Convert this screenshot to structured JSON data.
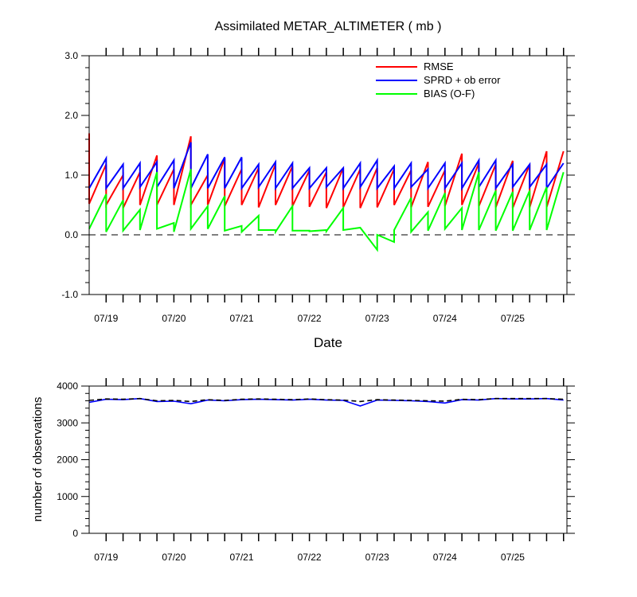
{
  "chart_data": [
    {
      "type": "line",
      "title": "Assimilated METAR_ALTIMETER ( mb )",
      "xlabel": "Date",
      "ylabel": "",
      "ylim": [
        -1.0,
        3.0
      ],
      "yticks": [
        "-1.0",
        "0.0",
        "1.0",
        "2.0",
        "3.0"
      ],
      "xlim": [
        0.0,
        7.05
      ],
      "xticks": [
        {
          "x": 0.25,
          "label": "07/19"
        },
        {
          "x": 1.25,
          "label": "07/20"
        },
        {
          "x": 2.25,
          "label": "07/21"
        },
        {
          "x": 3.25,
          "label": "07/22"
        },
        {
          "x": 4.25,
          "label": "07/23"
        },
        {
          "x": 4.75,
          "label": ""
        },
        {
          "x": 5.25,
          "label": "07/24"
        },
        {
          "x": 6.25,
          "label": "07/25"
        }
      ],
      "zero_line": true,
      "legend_position": "top-right",
      "series": [
        {
          "name": "RMSE",
          "color": "#ff0000",
          "x": [
            0.0,
            0.0,
            0.25,
            0.25,
            0.5,
            0.5,
            0.75,
            0.75,
            1.0,
            1.0,
            1.25,
            1.25,
            1.5,
            1.5,
            1.75,
            1.75,
            2.0,
            2.0,
            2.25,
            2.25,
            2.5,
            2.5,
            2.75,
            2.75,
            3.0,
            3.0,
            3.25,
            3.25,
            3.5,
            3.5,
            3.75,
            3.75,
            4.0,
            4.0,
            4.25,
            4.25,
            4.5,
            4.5,
            4.75,
            4.75,
            5.0,
            5.0,
            5.25,
            5.25,
            5.5,
            5.5,
            5.75,
            5.75,
            6.0,
            6.0,
            6.25,
            6.25,
            6.5,
            6.5,
            6.75,
            6.75,
            7.0
          ],
          "y": [
            1.7,
            0.52,
            1.18,
            0.5,
            1.0,
            0.45,
            1.05,
            0.5,
            1.33,
            0.5,
            1.1,
            0.5,
            1.65,
            0.5,
            1.0,
            0.5,
            1.28,
            0.48,
            1.1,
            0.5,
            1.12,
            0.46,
            1.18,
            0.5,
            1.15,
            0.48,
            1.08,
            0.47,
            1.05,
            0.45,
            1.12,
            0.46,
            1.1,
            0.45,
            1.12,
            0.46,
            1.1,
            0.5,
            1.08,
            0.46,
            1.22,
            0.47,
            1.08,
            0.48,
            1.36,
            0.5,
            1.2,
            0.48,
            1.18,
            0.46,
            1.24,
            0.45,
            1.18,
            0.46,
            1.4,
            0.46,
            1.4
          ]
        },
        {
          "name": "SPRD + ob error",
          "color": "#0000ff",
          "x": [
            0.0,
            0.25,
            0.25,
            0.5,
            0.5,
            0.75,
            0.75,
            1.0,
            1.0,
            1.25,
            1.25,
            1.5,
            1.5,
            1.75,
            1.75,
            2.0,
            2.0,
            2.25,
            2.25,
            2.5,
            2.5,
            2.75,
            2.75,
            3.0,
            3.0,
            3.25,
            3.25,
            3.5,
            3.5,
            3.75,
            3.75,
            4.0,
            4.0,
            4.25,
            4.25,
            4.5,
            4.5,
            4.75,
            4.75,
            5.0,
            5.0,
            5.25,
            5.25,
            5.5,
            5.5,
            5.75,
            5.75,
            6.0,
            6.0,
            6.25,
            6.25,
            6.5,
            6.5,
            6.75,
            6.75,
            7.0,
            7.0
          ],
          "y": [
            0.78,
            1.28,
            0.78,
            1.18,
            0.78,
            1.2,
            0.8,
            1.22,
            0.8,
            1.25,
            0.78,
            1.55,
            0.78,
            1.35,
            0.78,
            1.3,
            0.78,
            1.3,
            0.78,
            1.18,
            0.8,
            1.22,
            0.78,
            1.2,
            0.78,
            1.12,
            0.78,
            1.12,
            0.8,
            1.12,
            0.78,
            1.2,
            0.8,
            1.25,
            0.78,
            1.15,
            0.78,
            1.2,
            0.8,
            1.1,
            0.78,
            1.2,
            0.78,
            1.2,
            0.78,
            1.25,
            0.8,
            1.25,
            0.78,
            1.18,
            0.8,
            1.18,
            0.8,
            1.18,
            0.78,
            1.2,
            1.2
          ]
        },
        {
          "name": "BIAS (O-F)",
          "color": "#00ff00",
          "x": [
            0.0,
            0.25,
            0.25,
            0.5,
            0.5,
            0.75,
            0.75,
            1.0,
            1.0,
            1.25,
            1.25,
            1.5,
            1.5,
            1.75,
            1.75,
            2.0,
            2.0,
            2.25,
            2.25,
            2.5,
            2.5,
            2.75,
            2.75,
            3.0,
            3.0,
            3.25,
            3.25,
            3.5,
            3.5,
            3.75,
            3.75,
            4.0,
            4.25,
            4.25,
            4.5,
            4.5,
            4.75,
            4.75,
            5.0,
            5.0,
            5.25,
            5.25,
            5.5,
            5.5,
            5.75,
            5.75,
            6.0,
            6.0,
            6.25,
            6.25,
            6.5,
            6.5,
            6.75,
            6.75,
            7.0
          ],
          "y": [
            0.1,
            0.68,
            0.05,
            0.58,
            0.07,
            0.42,
            0.08,
            1.05,
            0.1,
            0.2,
            0.05,
            1.1,
            0.1,
            0.48,
            0.1,
            0.65,
            0.07,
            0.15,
            0.05,
            0.32,
            0.08,
            0.08,
            0.05,
            0.48,
            0.07,
            0.07,
            0.06,
            0.08,
            0.06,
            0.45,
            0.08,
            0.12,
            -0.25,
            0.0,
            -0.12,
            0.08,
            0.62,
            0.05,
            0.38,
            0.07,
            0.7,
            0.1,
            0.45,
            0.08,
            1.05,
            0.08,
            0.74,
            0.07,
            0.72,
            0.07,
            0.74,
            0.08,
            0.8,
            0.08,
            1.05
          ]
        }
      ]
    },
    {
      "type": "line",
      "title": "",
      "xlabel": "",
      "ylabel": "number of observations",
      "ylim": [
        0,
        4000
      ],
      "yticks": [
        "0",
        "1000",
        "2000",
        "3000",
        "4000"
      ],
      "xlim": [
        0.0,
        7.05
      ],
      "xticks": [
        {
          "x": 0.25,
          "label": "07/19"
        },
        {
          "x": 1.25,
          "label": "07/20"
        },
        {
          "x": 2.25,
          "label": "07/21"
        },
        {
          "x": 3.25,
          "label": "07/22"
        },
        {
          "x": 4.25,
          "label": "07/23"
        },
        {
          "x": 5.25,
          "label": "07/24"
        },
        {
          "x": 6.25,
          "label": "07/25"
        }
      ],
      "series": [
        {
          "name": "",
          "color": "#0000ff",
          "dash": "solid",
          "x": [
            0.0,
            0.25,
            0.5,
            0.75,
            1.0,
            1.25,
            1.5,
            1.75,
            2.0,
            2.25,
            2.5,
            2.75,
            3.0,
            3.25,
            3.5,
            3.75,
            4.0,
            4.25,
            4.5,
            4.75,
            5.0,
            5.25,
            5.5,
            5.75,
            6.0,
            6.25,
            6.5,
            6.75,
            7.0
          ],
          "y": [
            3560,
            3640,
            3630,
            3660,
            3580,
            3590,
            3520,
            3620,
            3600,
            3630,
            3640,
            3630,
            3620,
            3640,
            3620,
            3610,
            3460,
            3620,
            3610,
            3600,
            3580,
            3540,
            3630,
            3620,
            3660,
            3650,
            3650,
            3660,
            3620
          ]
        },
        {
          "name": "",
          "color": "#000000",
          "dash": "dashed",
          "x": [
            0.0,
            0.25,
            0.5,
            0.75,
            1.0,
            1.25,
            1.5,
            1.75,
            2.0,
            2.25,
            2.5,
            2.75,
            3.0,
            3.25,
            3.5,
            3.75,
            4.0,
            4.25,
            4.5,
            4.75,
            5.0,
            5.25,
            5.5,
            5.75,
            6.0,
            6.25,
            6.5,
            6.75,
            7.0
          ],
          "y": [
            3610,
            3650,
            3640,
            3660,
            3600,
            3610,
            3580,
            3630,
            3610,
            3640,
            3650,
            3640,
            3630,
            3650,
            3630,
            3620,
            3580,
            3630,
            3620,
            3610,
            3600,
            3590,
            3640,
            3630,
            3660,
            3660,
            3660,
            3660,
            3640
          ]
        }
      ]
    }
  ]
}
